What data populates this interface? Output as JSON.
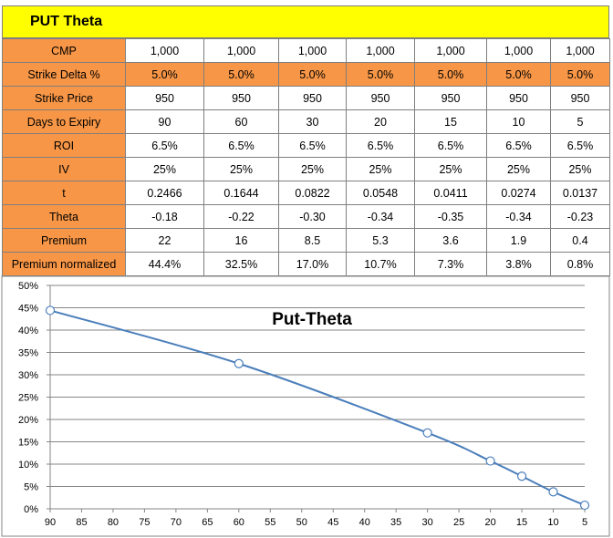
{
  "header": {
    "title": "PUT Theta"
  },
  "table": {
    "rows": [
      {
        "label": "CMP",
        "highlight": false,
        "values": [
          "1,000",
          "1,000",
          "1,000",
          "1,000",
          "1,000",
          "1,000",
          "1,000"
        ]
      },
      {
        "label": "Strike Delta %",
        "highlight": true,
        "values": [
          "5.0%",
          "5.0%",
          "5.0%",
          "5.0%",
          "5.0%",
          "5.0%",
          "5.0%"
        ]
      },
      {
        "label": "Strike Price",
        "highlight": false,
        "values": [
          "950",
          "950",
          "950",
          "950",
          "950",
          "950",
          "950"
        ]
      },
      {
        "label": "Days to Expiry",
        "highlight": false,
        "values": [
          "90",
          "60",
          "30",
          "20",
          "15",
          "10",
          "5"
        ]
      },
      {
        "label": "ROI",
        "highlight": false,
        "values": [
          "6.5%",
          "6.5%",
          "6.5%",
          "6.5%",
          "6.5%",
          "6.5%",
          "6.5%"
        ]
      },
      {
        "label": "IV",
        "highlight": false,
        "values": [
          "25%",
          "25%",
          "25%",
          "25%",
          "25%",
          "25%",
          "25%"
        ]
      },
      {
        "label": "t",
        "highlight": false,
        "values": [
          "0.2466",
          "0.1644",
          "0.0822",
          "0.0548",
          "0.0411",
          "0.0274",
          "0.0137"
        ]
      },
      {
        "label": "Theta",
        "highlight": false,
        "values": [
          "-0.18",
          "-0.22",
          "-0.30",
          "-0.34",
          "-0.35",
          "-0.34",
          "-0.23"
        ]
      },
      {
        "label": "Premium",
        "highlight": false,
        "values": [
          "22",
          "16",
          "8.5",
          "5.3",
          "3.6",
          "1.9",
          "0.4"
        ]
      },
      {
        "label": "Premium normalized",
        "highlight": false,
        "values": [
          "44.4%",
          "32.5%",
          "17.0%",
          "10.7%",
          "7.3%",
          "3.8%",
          "0.8%"
        ]
      }
    ]
  },
  "colors": {
    "title_bg": "#ffff00",
    "label_bg": "#f79646",
    "line": "#4a7ebb",
    "grid": "#868686"
  },
  "chart_data": {
    "type": "line",
    "title": "Put-Theta",
    "x": [
      90,
      60,
      30,
      20,
      15,
      10,
      5
    ],
    "series": [
      {
        "values": [
          44.4,
          32.5,
          17.0,
          10.7,
          7.3,
          3.8,
          0.8
        ]
      }
    ],
    "xlim": [
      90,
      5
    ],
    "xaxis_reversed": true,
    "xticks": [
      90,
      85,
      80,
      75,
      70,
      65,
      60,
      55,
      50,
      45,
      40,
      35,
      30,
      25,
      20,
      15,
      10,
      5
    ],
    "ylim": [
      0,
      50
    ],
    "yticks": [
      0,
      5,
      10,
      15,
      20,
      25,
      30,
      35,
      40,
      45,
      50
    ],
    "ytick_suffix": "%",
    "grid": true,
    "legend": "none",
    "xlabel": "",
    "ylabel": ""
  }
}
